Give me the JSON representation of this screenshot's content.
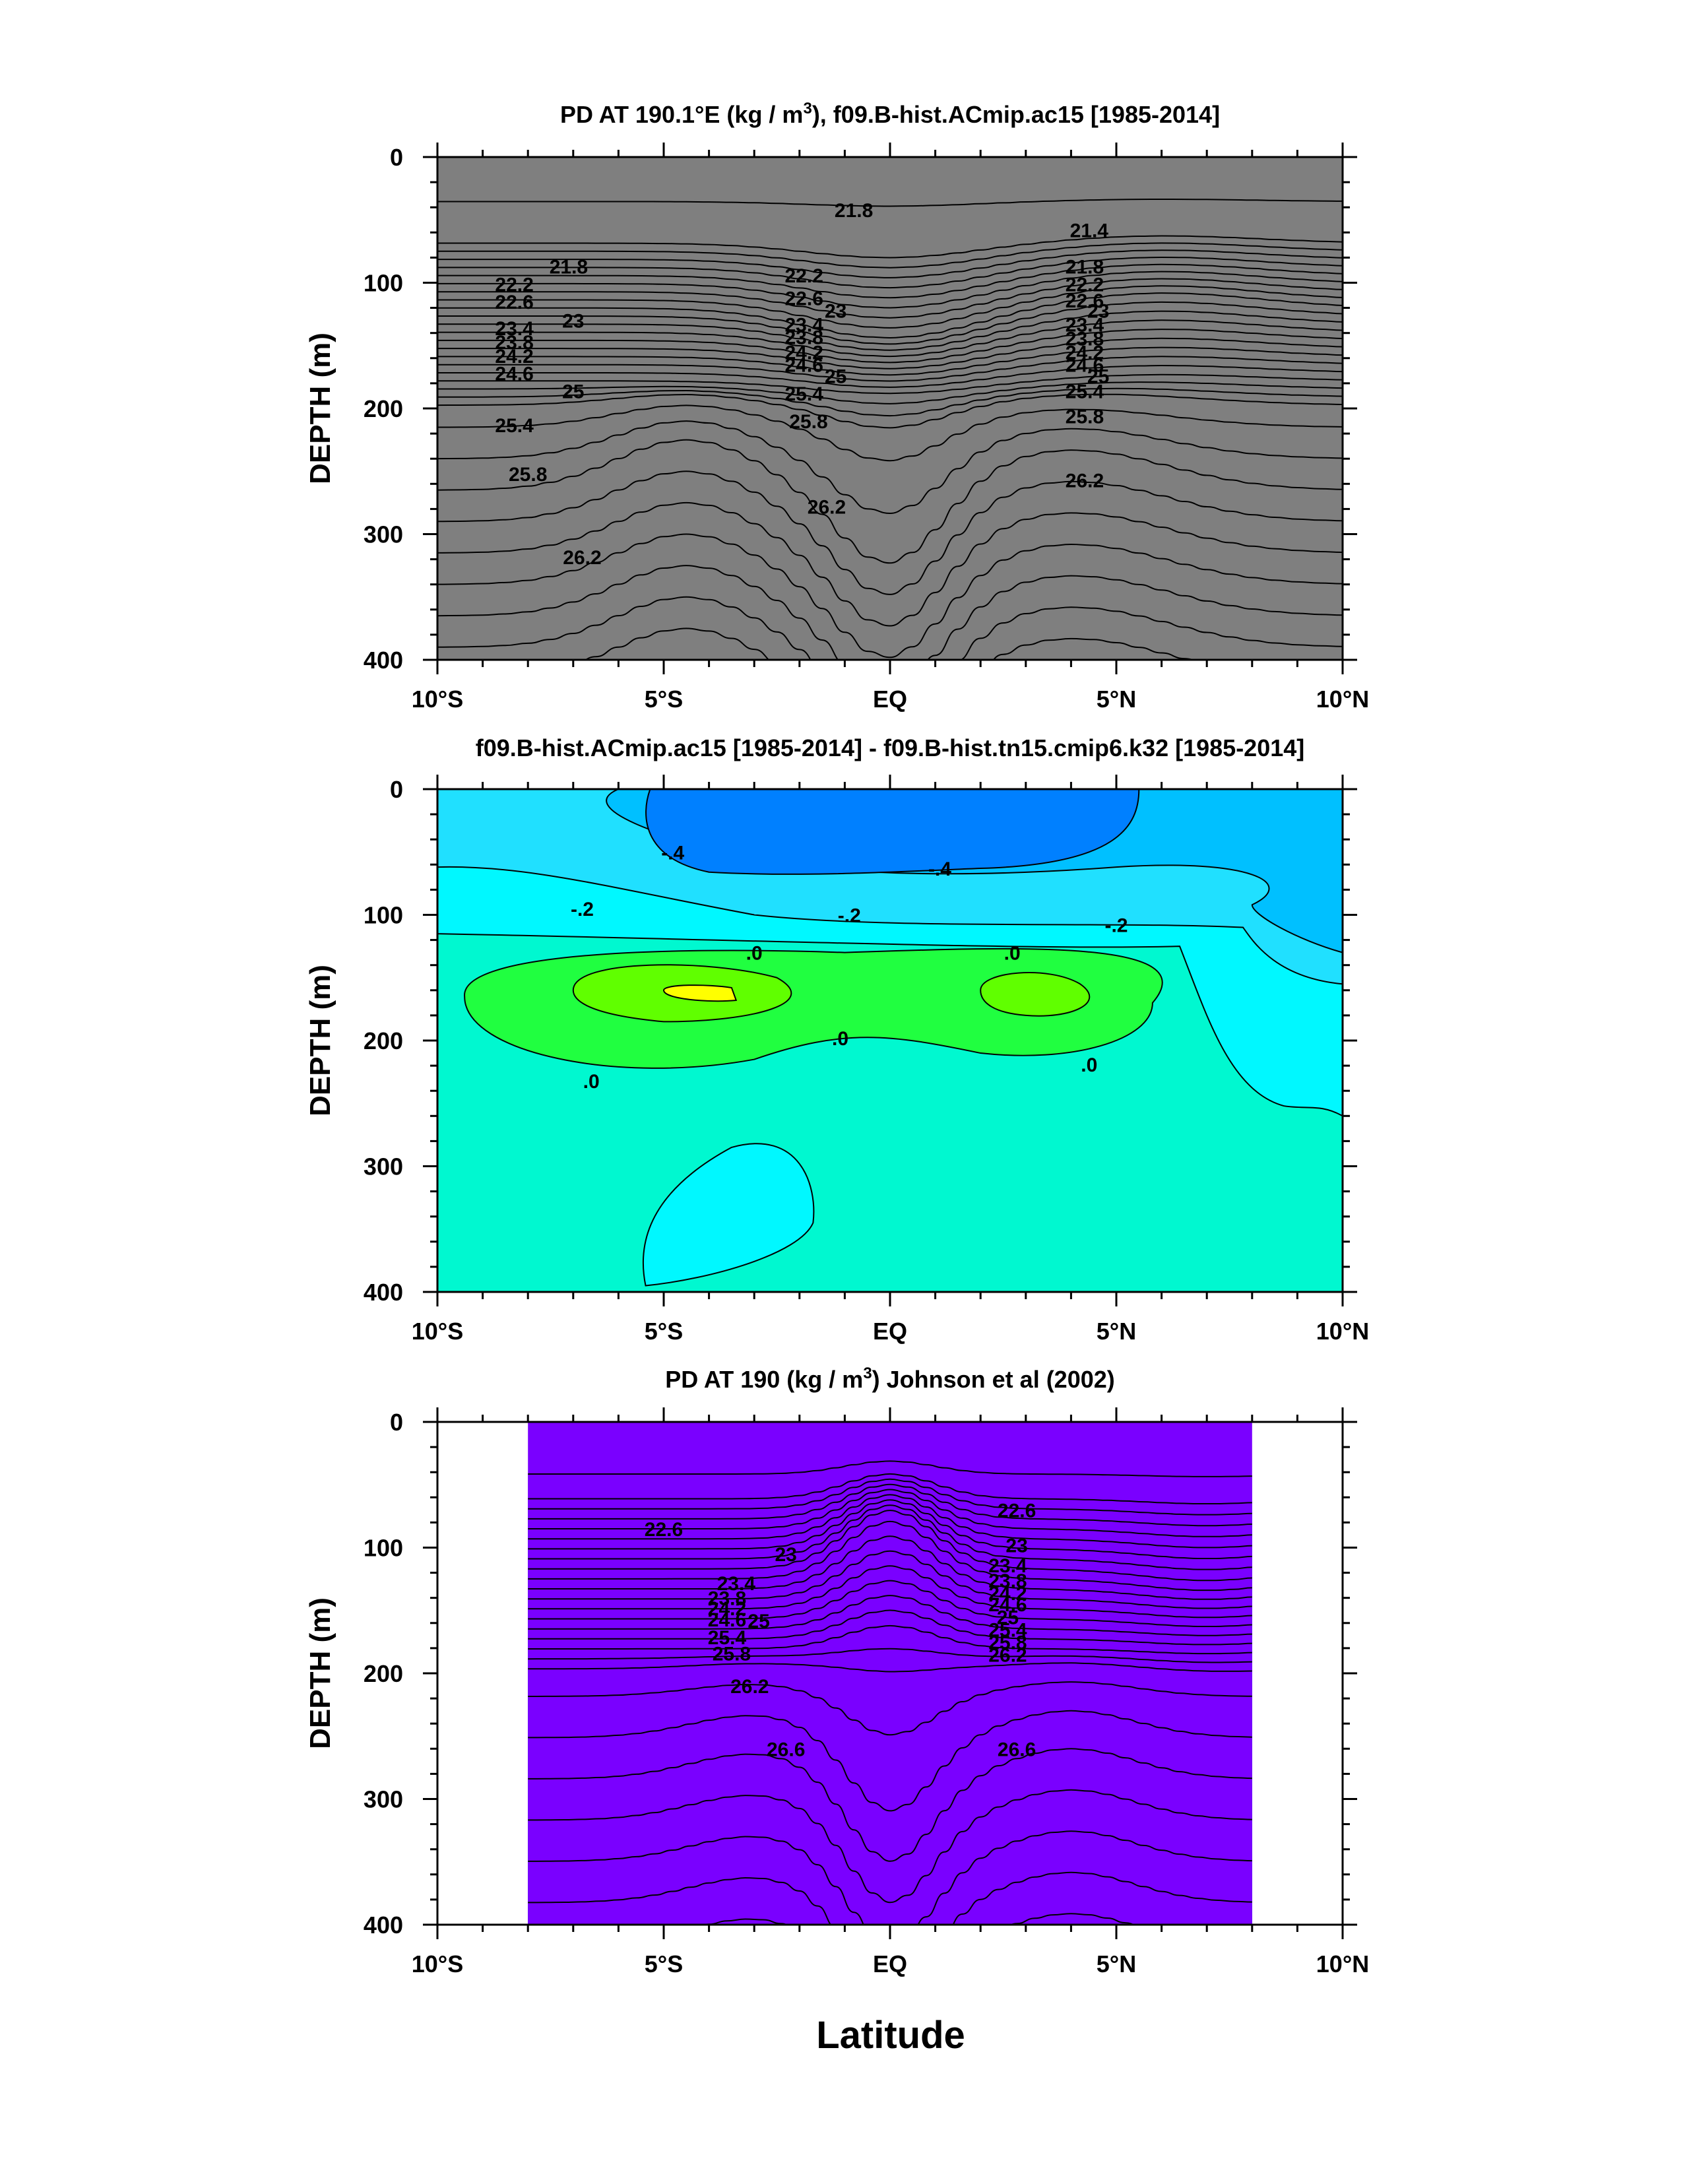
{
  "chart_data": [
    {
      "type": "contour",
      "title": "PD AT 190.1°E (kg / m³), f09.B-hist.ACmip.ac15 [1985-2014]",
      "title_parts": [
        "PD AT 190.1°E (kg / m",
        "3",
        "), f09.B-hist.ACmip.ac15 [1985-2014]"
      ],
      "ylabel": "DEPTH (m)",
      "xlabel": "",
      "xlim": [
        -10,
        10
      ],
      "ylim": [
        0,
        400
      ],
      "y_inverted": true,
      "x_ticks": [
        -10,
        -5,
        0,
        5,
        10
      ],
      "x_tick_labels": [
        "10°S",
        "5°S",
        "EQ",
        "5°N",
        "10°N"
      ],
      "y_ticks": [
        0,
        100,
        200,
        300,
        400
      ],
      "y_tick_labels": [
        "0",
        "100",
        "200",
        "300",
        "400"
      ],
      "data_x_range": [
        -10,
        10
      ],
      "contour_interval": 0.2,
      "level_range": [
        20.6,
        26.8
      ],
      "contour_labels": [
        {
          "text": "21.8",
          "x": -0.8,
          "y": 42
        },
        {
          "text": "21.4",
          "x": 4.4,
          "y": 58
        },
        {
          "text": "21.8",
          "x": -7.1,
          "y": 87
        },
        {
          "text": "21.8",
          "x": 4.3,
          "y": 87
        },
        {
          "text": "22.2",
          "x": -8.3,
          "y": 101
        },
        {
          "text": "22.2",
          "x": -1.9,
          "y": 94
        },
        {
          "text": "22.2",
          "x": 4.3,
          "y": 101
        },
        {
          "text": "22.6",
          "x": -8.3,
          "y": 115
        },
        {
          "text": "22.6",
          "x": -1.9,
          "y": 112
        },
        {
          "text": "22.6",
          "x": 4.3,
          "y": 114
        },
        {
          "text": "23",
          "x": -7.0,
          "y": 130
        },
        {
          "text": "23",
          "x": -1.2,
          "y": 122
        },
        {
          "text": "23",
          "x": 4.6,
          "y": 122
        },
        {
          "text": "23.4",
          "x": -8.3,
          "y": 136
        },
        {
          "text": "23.4",
          "x": -1.9,
          "y": 133
        },
        {
          "text": "23.4",
          "x": 4.3,
          "y": 133
        },
        {
          "text": "23.8",
          "x": -8.3,
          "y": 147
        },
        {
          "text": "23.8",
          "x": -1.9,
          "y": 143
        },
        {
          "text": "23.8",
          "x": 4.3,
          "y": 144
        },
        {
          "text": "24.2",
          "x": -8.3,
          "y": 158
        },
        {
          "text": "24.2",
          "x": -1.9,
          "y": 155
        },
        {
          "text": "24.2",
          "x": 4.3,
          "y": 155
        },
        {
          "text": "24.6",
          "x": -8.3,
          "y": 172
        },
        {
          "text": "24.6",
          "x": -1.9,
          "y": 165
        },
        {
          "text": "24.6",
          "x": 4.3,
          "y": 165
        },
        {
          "text": "25",
          "x": -7.0,
          "y": 186
        },
        {
          "text": "25",
          "x": -1.2,
          "y": 174
        },
        {
          "text": "25",
          "x": 4.6,
          "y": 174
        },
        {
          "text": "25.4",
          "x": -8.3,
          "y": 213
        },
        {
          "text": "25.4",
          "x": -1.9,
          "y": 188
        },
        {
          "text": "25.4",
          "x": 4.3,
          "y": 186
        },
        {
          "text": "25.8",
          "x": -8.0,
          "y": 252
        },
        {
          "text": "25.8",
          "x": -1.8,
          "y": 210
        },
        {
          "text": "25.8",
          "x": 4.3,
          "y": 206
        },
        {
          "text": "26.2",
          "x": -1.4,
          "y": 278
        },
        {
          "text": "26.2",
          "x": 4.3,
          "y": 257
        },
        {
          "text": "26.2",
          "x": -6.8,
          "y": 318
        }
      ]
    },
    {
      "type": "contour",
      "title": "f09.B-hist.ACmip.ac15 [1985-2014] - f09.B-hist.tn15.cmip6.k32 [1985-2014]",
      "ylabel": "DEPTH (m)",
      "xlabel": "",
      "xlim": [
        -10,
        10
      ],
      "ylim": [
        0,
        400
      ],
      "y_inverted": true,
      "x_ticks": [
        -10,
        -5,
        0,
        5,
        10
      ],
      "x_tick_labels": [
        "10°S",
        "5°S",
        "EQ",
        "5°N",
        "10°N"
      ],
      "y_ticks": [
        0,
        100,
        200,
        300,
        400
      ],
      "y_tick_labels": [
        "0",
        "100",
        "200",
        "300",
        "400"
      ],
      "data_x_range": [
        -10,
        10
      ],
      "contour_interval": 0.1,
      "level_range": [
        -0.5,
        0.2
      ],
      "contour_labels": [
        {
          "text": "-.4",
          "x": -4.8,
          "y": 50
        },
        {
          "text": "-.4",
          "x": 1.1,
          "y": 63
        },
        {
          "text": "-.2",
          "x": -6.8,
          "y": 95
        },
        {
          "text": "-.2",
          "x": -0.9,
          "y": 100
        },
        {
          "text": "-.2",
          "x": 5.0,
          "y": 108
        },
        {
          "text": ".0",
          "x": -3.0,
          "y": 130
        },
        {
          "text": ".0",
          "x": 2.7,
          "y": 130
        },
        {
          "text": ".0",
          "x": -1.1,
          "y": 198
        },
        {
          "text": ".0",
          "x": -6.6,
          "y": 232
        },
        {
          "text": ".0",
          "x": 4.4,
          "y": 219
        }
      ]
    },
    {
      "type": "contour",
      "title": "PD AT 190 (kg / m³) Johnson et al (2002)",
      "title_parts": [
        "PD AT 190 (kg / m",
        "3",
        ") Johnson et al (2002)"
      ],
      "ylabel": "DEPTH (m)",
      "xlabel": "Latitude",
      "xlim": [
        -10,
        10
      ],
      "ylim": [
        0,
        400
      ],
      "y_inverted": true,
      "x_ticks": [
        -10,
        -5,
        0,
        5,
        10
      ],
      "x_tick_labels": [
        "10°S",
        "5°S",
        "EQ",
        "5°N",
        "10°N"
      ],
      "y_ticks": [
        0,
        100,
        200,
        300,
        400
      ],
      "y_tick_labels": [
        "0",
        "100",
        "200",
        "300",
        "400"
      ],
      "data_x_range": [
        -8,
        8
      ],
      "contour_interval": 0.2,
      "level_range": [
        21.8,
        27.0
      ],
      "contour_labels": [
        {
          "text": "22.6",
          "x": 2.8,
          "y": 70
        },
        {
          "text": "22.6",
          "x": -5.0,
          "y": 85
        },
        {
          "text": "23",
          "x": -2.3,
          "y": 105
        },
        {
          "text": "23",
          "x": 2.8,
          "y": 98
        },
        {
          "text": "23.4",
          "x": -3.4,
          "y": 128
        },
        {
          "text": "23.4",
          "x": 2.6,
          "y": 114
        },
        {
          "text": "23.8",
          "x": -3.6,
          "y": 140
        },
        {
          "text": "23.8",
          "x": 2.6,
          "y": 126
        },
        {
          "text": "24.2",
          "x": -3.6,
          "y": 148
        },
        {
          "text": "24.2",
          "x": 2.6,
          "y": 136
        },
        {
          "text": "24.6",
          "x": -3.6,
          "y": 157
        },
        {
          "text": "24.6",
          "x": 2.6,
          "y": 145
        },
        {
          "text": "25",
          "x": -2.9,
          "y": 158
        },
        {
          "text": "25",
          "x": 2.6,
          "y": 155
        },
        {
          "text": "25.4",
          "x": -3.6,
          "y": 171
        },
        {
          "text": "25.4",
          "x": 2.6,
          "y": 165
        },
        {
          "text": "25.8",
          "x": -3.5,
          "y": 184
        },
        {
          "text": "25.8",
          "x": 2.6,
          "y": 175
        },
        {
          "text": "26.2",
          "x": -3.1,
          "y": 210
        },
        {
          "text": "26.2",
          "x": 2.6,
          "y": 185
        },
        {
          "text": "26.6",
          "x": -2.3,
          "y": 260
        },
        {
          "text": "26.6",
          "x": 2.8,
          "y": 260
        }
      ]
    }
  ],
  "figure_xlabel": "Latitude"
}
